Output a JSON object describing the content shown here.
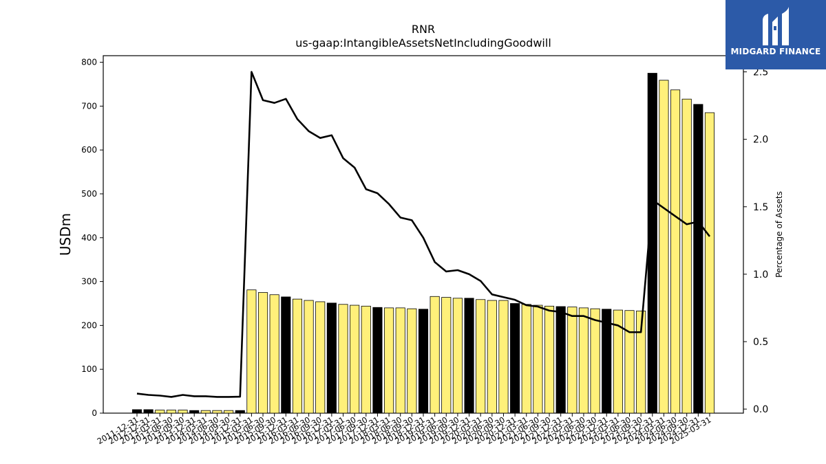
{
  "chart_data": {
    "type": "bar",
    "title": "RNR",
    "subtitle": "us-gaap:IntangibleAssetsNetIncludingGoodwill",
    "ylabel": "USDm",
    "y2label": "Percentage of Assets",
    "ylim": [
      0,
      815
    ],
    "y2lim": [
      -0.03,
      2.62
    ],
    "yticks": [
      0,
      100,
      200,
      300,
      400,
      500,
      600,
      700,
      800
    ],
    "y2ticks": [
      0.0,
      0.5,
      1.0,
      1.5,
      2.0,
      2.5
    ],
    "categories": [
      "2011-12-31",
      "2012-12-31",
      "2013-03-31",
      "2013-06-30",
      "2013-09-30",
      "2013-12-31",
      "2014-03-31",
      "2014-06-30",
      "2014-09-30",
      "2014-12-31",
      "2015-03-31",
      "2015-06-30",
      "2015-09-30",
      "2015-12-31",
      "2016-03-31",
      "2016-06-30",
      "2016-09-30",
      "2016-12-31",
      "2017-03-31",
      "2017-06-30",
      "2017-09-30",
      "2017-12-31",
      "2018-03-31",
      "2018-06-30",
      "2018-09-30",
      "2018-12-31",
      "2019-03-31",
      "2019-06-30",
      "2019-09-30",
      "2019-12-31",
      "2020-03-31",
      "2020-06-30",
      "2020-09-30",
      "2020-12-31",
      "2021-03-31",
      "2021-06-30",
      "2021-09-30",
      "2021-12-31",
      "2022-03-31",
      "2022-06-30",
      "2022-09-30",
      "2022-12-31",
      "2023-03-31",
      "2023-06-30",
      "2023-09-30",
      "2023-12-31",
      "2024-03-31",
      "2024-06-30",
      "2024-09-30",
      "2024-12-31",
      "2025-03-31"
    ],
    "series": [
      {
        "type": "bar",
        "values": [
          8,
          8,
          7,
          7,
          7,
          6,
          6,
          6,
          6,
          6,
          281,
          275,
          270,
          265,
          260,
          257,
          254,
          251,
          248,
          246,
          244,
          241,
          240,
          240,
          238,
          237,
          266,
          264,
          262,
          262,
          259,
          257,
          257,
          250,
          248,
          246,
          244,
          243,
          242,
          240,
          238,
          237,
          235,
          234,
          233,
          775,
          759,
          737,
          716,
          704,
          685
        ],
        "highlight": [
          true,
          true,
          false,
          false,
          false,
          true,
          false,
          false,
          false,
          true,
          false,
          false,
          false,
          true,
          false,
          false,
          false,
          true,
          false,
          false,
          false,
          true,
          false,
          false,
          false,
          true,
          false,
          false,
          false,
          true,
          false,
          false,
          false,
          true,
          false,
          false,
          false,
          true,
          false,
          false,
          false,
          true,
          false,
          false,
          false,
          true,
          false,
          false,
          false,
          true,
          false
        ],
        "color": "#fff07a",
        "highlight_color": "#000000"
      },
      {
        "type": "line",
        "axis": "right",
        "values": [
          0.115,
          0.105,
          0.1,
          0.09,
          0.105,
          0.095,
          0.095,
          0.09,
          0.09,
          0.092,
          2.5,
          2.29,
          2.27,
          2.3,
          2.15,
          2.06,
          2.01,
          2.03,
          1.86,
          1.79,
          1.63,
          1.6,
          1.52,
          1.42,
          1.4,
          1.27,
          1.09,
          1.02,
          1.03,
          1.0,
          0.95,
          0.85,
          0.83,
          0.81,
          0.77,
          0.76,
          0.73,
          0.72,
          0.69,
          0.69,
          0.66,
          0.64,
          0.62,
          0.57,
          0.57,
          1.55,
          1.49,
          1.43,
          1.37,
          1.39,
          1.28
        ],
        "color": "#000000"
      }
    ]
  },
  "logo": {
    "text": "MIDGARD FINANCE"
  }
}
